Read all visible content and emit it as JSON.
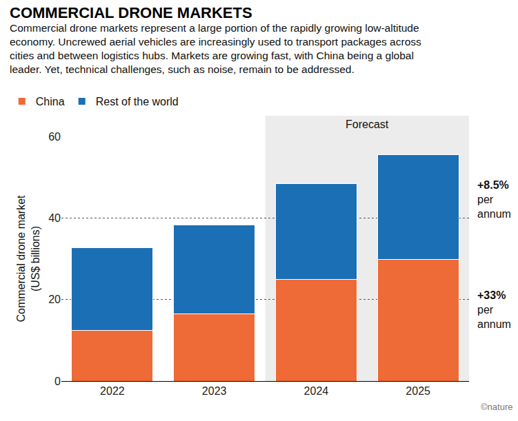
{
  "chart_data": {
    "type": "bar",
    "title": "COMMERCIAL DRONE MARKETS",
    "subtitle": [
      "Commercial drone markets represent a large portion of the rapidly growing low-altitude",
      "economy. Uncrewed aerial vehicles are increasingly used to transport packages across",
      "cities and between logistics hubs. Markets are growing fast, with China being a global",
      "leader. Yet, technical challenges, such as noise, remain to be addressed."
    ],
    "y_label": [
      "Commercial drone market",
      "(US$ billions)"
    ],
    "categories": [
      "2022",
      "2023",
      "2024",
      "2025"
    ],
    "series": [
      {
        "name": "China",
        "color": "#ee6a37",
        "values": [
          12.5,
          16.5,
          25,
          29.8
        ],
        "annotation": [
          "+33%",
          "per",
          "annum"
        ]
      },
      {
        "name": "Rest of the world",
        "color": "#1b6fb5",
        "values": [
          20.2,
          21.8,
          23.5,
          25.7
        ],
        "annotation": [
          "+8.5%",
          "per",
          "annum"
        ]
      }
    ],
    "stacked": true,
    "ylim": [
      0,
      60
    ],
    "yticks": [
      0,
      20,
      40,
      60
    ],
    "grid": true,
    "legend": "top-left",
    "forecast": {
      "label": "Forecast",
      "categories": [
        "2024",
        "2025"
      ]
    },
    "credit": "©nature"
  }
}
